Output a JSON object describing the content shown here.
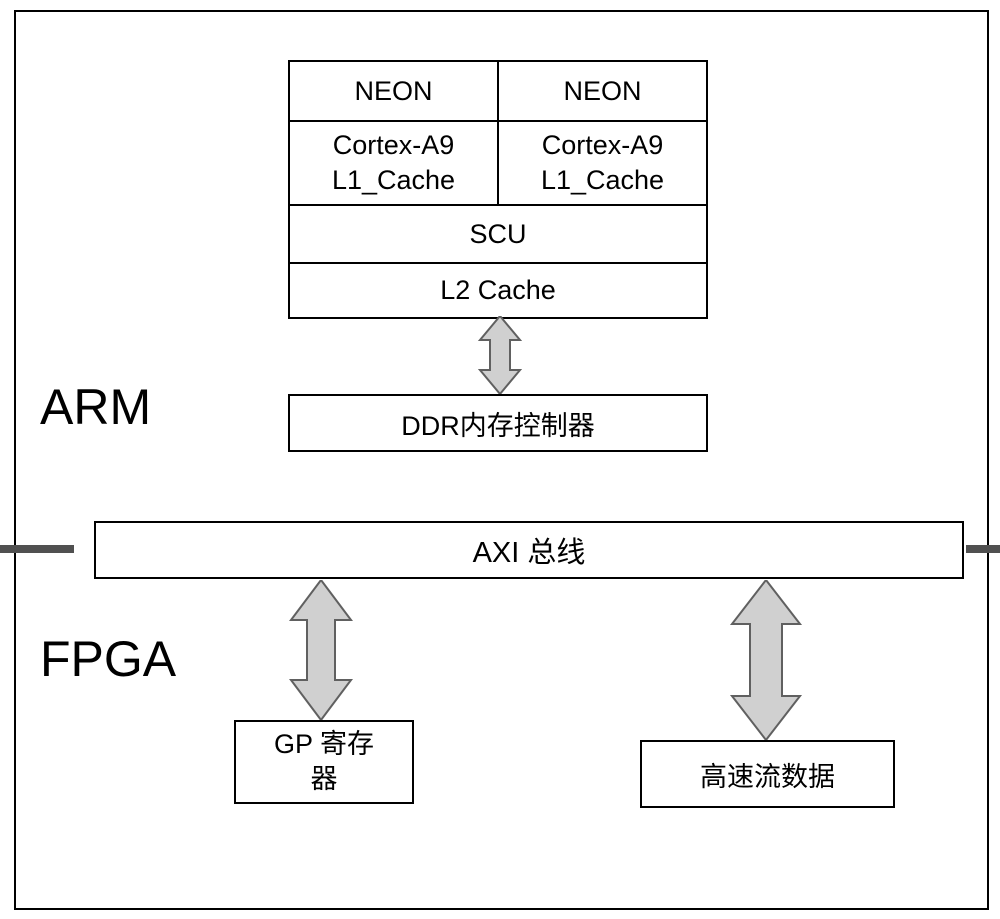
{
  "cpu": {
    "neon_left": "NEON",
    "neon_right": "NEON",
    "core_left_line1": "Cortex-A9",
    "core_left_line2": "L1_Cache",
    "core_right_line1": "Cortex-A9",
    "core_right_line2": "L1_Cache",
    "scu": "SCU",
    "l2": "L2 Cache"
  },
  "ddr": {
    "label": "DDR内存控制器"
  },
  "axi": {
    "label": "AXI 总线"
  },
  "gp": {
    "line1": "GP 寄存",
    "line2": "器"
  },
  "stream": {
    "label": "高速流数据"
  },
  "sections": {
    "arm": "ARM",
    "fpga": "FPGA"
  },
  "colors": {
    "border": "#000000",
    "background": "#ffffff",
    "arrow_fill": "#d0d0d0",
    "arrow_stroke": "#606060",
    "dash": "#505050"
  },
  "dash_segments": [
    74,
    84,
    84,
    84,
    84,
    84,
    84,
    84,
    74
  ]
}
